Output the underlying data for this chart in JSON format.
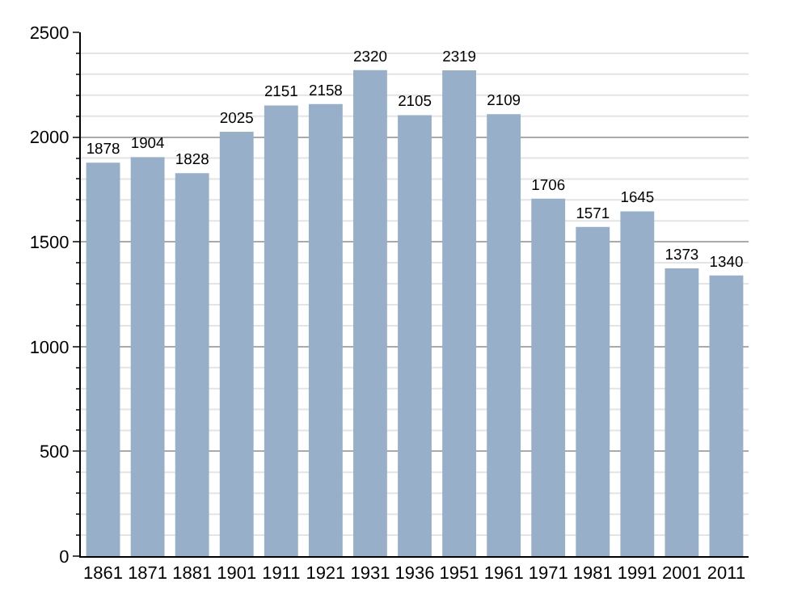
{
  "chart_data": {
    "type": "bar",
    "categories": [
      "1861",
      "1871",
      "1881",
      "1901",
      "1911",
      "1921",
      "1931",
      "1936",
      "1951",
      "1961",
      "1971",
      "1981",
      "1991",
      "2001",
      "2011"
    ],
    "values": [
      1878,
      1904,
      1828,
      2025,
      2151,
      2158,
      2320,
      2105,
      2319,
      2109,
      1706,
      1571,
      1645,
      1373,
      1340
    ],
    "color": "#98afca",
    "data_labels": true,
    "ylim": [
      0,
      2500
    ],
    "yticks": [
      0,
      {
        "value": 100,
        "label": null
      },
      {
        "value": 200,
        "label": null
      },
      {
        "value": 300,
        "label": null
      },
      {
        "value": 400,
        "label": null
      },
      500,
      {
        "value": 600,
        "label": null
      },
      {
        "value": 700,
        "label": null
      },
      {
        "value": 800,
        "label": null
      },
      {
        "value": 900,
        "label": null
      },
      1000,
      {
        "value": 1100,
        "label": null
      },
      {
        "value": 1200,
        "label": null
      },
      {
        "value": 1300,
        "label": null
      },
      {
        "value": 1400,
        "label": null
      },
      1500,
      {
        "value": 1600,
        "label": null
      },
      {
        "value": 1700,
        "label": null
      },
      {
        "value": 1800,
        "label": null
      },
      {
        "value": 1900,
        "label": null
      },
      2000,
      {
        "value": 2100,
        "label": null
      },
      {
        "value": 2200,
        "label": null
      },
      {
        "value": 2300,
        "label": null
      },
      {
        "value": 2400,
        "label": null
      },
      2500
    ],
    "grid": "y"
  }
}
